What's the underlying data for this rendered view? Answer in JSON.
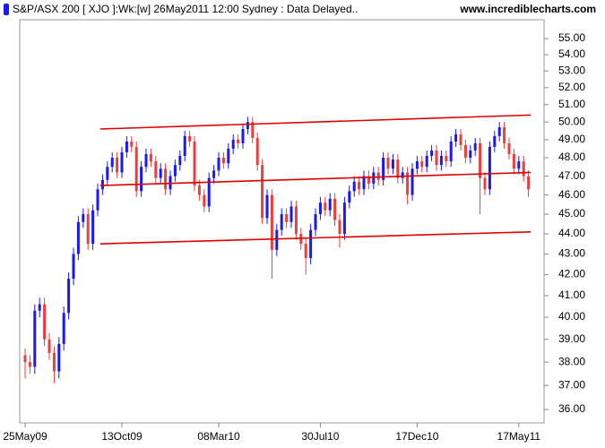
{
  "chart_data": {
    "type": "candlestick",
    "title": "S&P/ASX 200 [ XJO ]:Wk:[w]  26May2011 12:00 Sydney : Data Delayed..",
    "source": "www.incrediblecharts.com",
    "log_scale": true,
    "up_color": "#1a1aee",
    "down_color": "#e8403c",
    "categories": [
      "25May09",
      null,
      null,
      null,
      null,
      null,
      null,
      null,
      null,
      null,
      null,
      null,
      null,
      null,
      null,
      null,
      null,
      null,
      null,
      null,
      "13Oct09",
      null,
      null,
      null,
      null,
      null,
      null,
      null,
      null,
      null,
      null,
      null,
      null,
      null,
      null,
      null,
      null,
      null,
      null,
      null,
      "08Mar10",
      null,
      null,
      null,
      null,
      null,
      null,
      null,
      null,
      null,
      null,
      null,
      null,
      null,
      null,
      null,
      null,
      null,
      null,
      null,
      null,
      "30Jul10",
      null,
      null,
      null,
      null,
      null,
      null,
      null,
      null,
      null,
      null,
      null,
      null,
      null,
      null,
      null,
      null,
      null,
      null,
      null,
      "17Dec10",
      null,
      null,
      null,
      null,
      null,
      null,
      null,
      null,
      null,
      null,
      null,
      null,
      null,
      null,
      null,
      null,
      null,
      null,
      null,
      null,
      "17May11",
      null,
      null
    ],
    "open": [
      38.3,
      38.0,
      37.8,
      40.3,
      40.6,
      39.0,
      38.4,
      37.6,
      38.8,
      40.2,
      41.8,
      43.0,
      44.6,
      45.0,
      43.5,
      45.2,
      46.3,
      46.8,
      47.5,
      48.0,
      47.2,
      48.3,
      48.9,
      48.6,
      46.2,
      47.5,
      48.2,
      47.8,
      46.9,
      47.4,
      46.3,
      47.0,
      47.6,
      48.1,
      49.2,
      48.9,
      46.5,
      46.0,
      45.4,
      46.9,
      47.3,
      48.0,
      47.7,
      48.5,
      49.0,
      48.8,
      49.6,
      50.0,
      49.1,
      47.6,
      44.8,
      46.0,
      43.2,
      44.2,
      45.0,
      44.6,
      45.4,
      44.0,
      43.5,
      42.8,
      44.2,
      45.0,
      45.6,
      45.2,
      45.8,
      44.7,
      44.0,
      45.6,
      46.2,
      46.7,
      46.3,
      47.0,
      46.6,
      47.2,
      46.8,
      48.0,
      47.4,
      47.9,
      46.9,
      47.2,
      46.0,
      47.4,
      47.8,
      47.5,
      48.1,
      48.4,
      47.6,
      48.1,
      47.8,
      48.9,
      49.3,
      48.7,
      48.0,
      48.4,
      48.8,
      46.9,
      46.3,
      48.6,
      49.2,
      49.7,
      48.8,
      48.2,
      47.4,
      47.8,
      47.0
    ],
    "high": [
      38.6,
      38.3,
      40.6,
      40.9,
      40.9,
      39.3,
      38.7,
      39.1,
      40.5,
      42.1,
      43.3,
      44.9,
      45.3,
      45.3,
      45.5,
      46.6,
      47.1,
      47.8,
      48.3,
      48.3,
      48.6,
      49.2,
      49.2,
      48.9,
      47.8,
      48.5,
      48.5,
      48.1,
      47.7,
      47.7,
      47.3,
      47.9,
      48.4,
      49.5,
      49.5,
      49.2,
      46.8,
      46.3,
      47.2,
      47.6,
      48.3,
      48.3,
      48.8,
      49.3,
      49.3,
      49.9,
      50.3,
      50.3,
      49.4,
      47.9,
      46.3,
      46.3,
      44.5,
      45.3,
      45.3,
      45.7,
      45.7,
      44.3,
      43.8,
      44.5,
      45.3,
      45.9,
      45.9,
      46.1,
      46.1,
      45.0,
      45.9,
      46.5,
      47.0,
      47.0,
      47.3,
      47.3,
      47.5,
      47.5,
      48.3,
      48.3,
      48.2,
      48.2,
      47.5,
      47.5,
      47.7,
      48.1,
      48.1,
      48.4,
      48.7,
      48.7,
      48.4,
      48.4,
      49.2,
      49.6,
      49.6,
      49.0,
      48.7,
      49.1,
      49.1,
      47.2,
      48.9,
      49.5,
      50.0,
      50.0,
      49.1,
      48.5,
      48.1,
      48.1,
      47.3
    ],
    "low": [
      37.3,
      37.5,
      37.5,
      40.0,
      38.7,
      38.1,
      37.1,
      37.3,
      38.5,
      39.9,
      41.5,
      42.7,
      44.3,
      43.2,
      43.2,
      44.9,
      46.0,
      46.5,
      47.2,
      46.9,
      46.9,
      48.0,
      48.3,
      45.9,
      45.9,
      47.2,
      47.5,
      46.6,
      46.6,
      46.0,
      46.0,
      46.7,
      47.3,
      47.8,
      48.6,
      46.2,
      45.7,
      45.1,
      45.1,
      46.6,
      47.0,
      47.4,
      47.4,
      48.2,
      48.5,
      48.5,
      49.3,
      48.8,
      47.3,
      44.5,
      44.5,
      41.8,
      42.9,
      43.9,
      44.3,
      44.3,
      43.7,
      43.2,
      42.0,
      42.5,
      43.9,
      44.7,
      44.9,
      44.9,
      44.4,
      43.3,
      43.7,
      45.3,
      45.9,
      46.0,
      46.0,
      46.3,
      46.3,
      46.5,
      46.5,
      47.1,
      47.1,
      46.6,
      46.6,
      45.5,
      45.7,
      47.1,
      47.2,
      47.2,
      47.8,
      47.3,
      47.3,
      47.5,
      47.5,
      48.6,
      48.4,
      47.7,
      47.7,
      48.1,
      45.0,
      46.0,
      46.0,
      48.3,
      48.9,
      48.5,
      47.9,
      47.1,
      47.1,
      46.7,
      45.9
    ],
    "close": [
      38.0,
      37.8,
      40.3,
      40.6,
      39.0,
      38.4,
      37.6,
      38.8,
      40.2,
      41.8,
      43.0,
      44.6,
      45.0,
      43.5,
      45.2,
      46.3,
      46.8,
      47.5,
      48.0,
      47.2,
      48.3,
      48.9,
      48.6,
      46.2,
      47.5,
      48.2,
      47.8,
      46.9,
      47.4,
      46.3,
      47.0,
      47.6,
      48.1,
      49.2,
      48.9,
      46.5,
      46.0,
      45.4,
      46.9,
      47.3,
      48.0,
      47.7,
      48.5,
      49.0,
      48.8,
      49.6,
      50.0,
      49.1,
      47.6,
      44.8,
      46.0,
      43.2,
      44.2,
      45.0,
      44.6,
      45.4,
      44.0,
      43.5,
      42.8,
      44.2,
      45.0,
      45.6,
      45.2,
      45.8,
      44.7,
      44.0,
      45.6,
      46.2,
      46.7,
      46.3,
      47.0,
      46.6,
      47.2,
      46.8,
      48.0,
      47.4,
      47.9,
      46.9,
      47.2,
      46.0,
      47.4,
      47.8,
      47.5,
      48.1,
      48.4,
      47.6,
      48.1,
      47.8,
      48.9,
      49.3,
      48.7,
      48.0,
      48.4,
      48.8,
      46.9,
      46.3,
      48.6,
      49.2,
      49.7,
      48.8,
      48.2,
      47.4,
      47.8,
      47.0,
      46.3
    ],
    "trendline_color": "#e00000",
    "trendlines": [
      {
        "x": [
          15.5,
          104.5
        ],
        "y": [
          49.6,
          50.4
        ]
      },
      {
        "x": [
          15.5,
          104.5
        ],
        "y": [
          46.5,
          47.2
        ]
      },
      {
        "x": [
          15.5,
          104.5
        ],
        "y": [
          43.5,
          44.1
        ]
      }
    ],
    "ylim": [
      35.45,
      56.2
    ],
    "yticks": [
      {
        "value": 36,
        "label": "36.00"
      },
      {
        "value": 37,
        "label": "37.00"
      },
      {
        "value": 38,
        "label": "38.00"
      },
      {
        "value": 39,
        "label": "39.00"
      },
      {
        "value": 40,
        "label": "40.00"
      },
      {
        "value": 41,
        "label": "41.00"
      },
      {
        "value": 42,
        "label": "42.00"
      },
      {
        "value": 43,
        "label": "43.00"
      },
      {
        "value": 44,
        "label": "44.00"
      },
      {
        "value": 45,
        "label": "45.00"
      },
      {
        "value": 46,
        "label": "46.00"
      },
      {
        "value": 47,
        "label": "47.00"
      },
      {
        "value": 48,
        "label": "48.00"
      },
      {
        "value": 49,
        "label": "49.00"
      },
      {
        "value": 50,
        "label": "50.00"
      },
      {
        "value": 51,
        "label": "51.00"
      },
      {
        "value": 52,
        "label": "52.00"
      },
      {
        "value": 53,
        "label": "53.00"
      },
      {
        "value": 54,
        "label": "54.00"
      },
      {
        "value": 55,
        "label": "55.00"
      }
    ]
  }
}
